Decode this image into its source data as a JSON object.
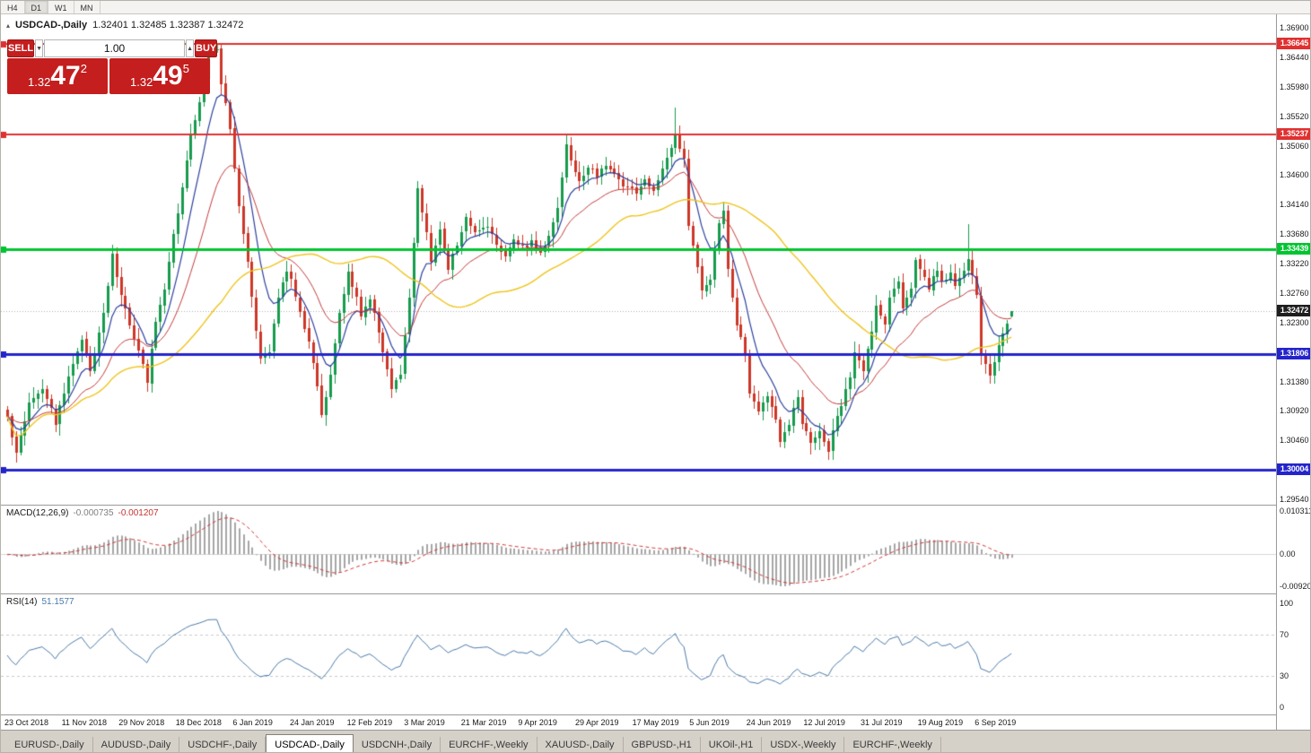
{
  "window": {
    "toolbar_timeframes": [
      "H4",
      "D1",
      "W1",
      "MN"
    ],
    "toolbar_active_index": 1
  },
  "chart_header": {
    "symbol": "USDCAD-,Daily",
    "ohlc": "1.32401 1.32485 1.32387 1.32472"
  },
  "icons": {
    "collapse": "▴",
    "volume_down": "▼",
    "volume_up": "▲"
  },
  "trade_panel": {
    "sell_label": "SELL",
    "buy_label": "BUY",
    "volume": "1.00",
    "sell_price": {
      "prefix": "1.32",
      "big": "47",
      "sup": "2"
    },
    "buy_price": {
      "prefix": "1.32",
      "big": "49",
      "sup": "5"
    }
  },
  "price_axis": {
    "labels": [
      "1.36900",
      "1.36440",
      "1.35980",
      "1.35520",
      "1.35060",
      "1.34600",
      "1.34140",
      "1.33680",
      "1.33220",
      "1.32760",
      "1.32300",
      "1.31840",
      "1.31380",
      "1.30920",
      "1.30460",
      "1.30000",
      "1.29540"
    ]
  },
  "levels": [
    {
      "price": 1.36645,
      "label": "1.36645",
      "color": "#e03030",
      "thickness": 2
    },
    {
      "price": 1.35237,
      "label": "1.35237",
      "color": "#e03030",
      "thickness": 2
    },
    {
      "price": 1.33439,
      "label": "1.33439",
      "color": "#00c430",
      "thickness": 3
    },
    {
      "price": 1.31806,
      "label": "1.31806",
      "color": "#2424cc",
      "thickness": 3
    },
    {
      "price": 1.30004,
      "label": "1.30004",
      "color": "#2424cc",
      "thickness": 3
    }
  ],
  "current_price": {
    "value": 1.32472,
    "label": "1.32472",
    "badge_color": "#1e1e1e"
  },
  "macd_panel": {
    "label": "MACD(12,26,9)",
    "value_main": "-0.000735",
    "value_signal": "-0.001207",
    "axis_top": "0.010311",
    "axis_zero": "0.00",
    "axis_bottom": "-0.009203"
  },
  "rsi_panel": {
    "label": "RSI(14)",
    "value": "51.1577",
    "axis": [
      "100",
      "70",
      "30",
      "0"
    ],
    "guide_levels": [
      70,
      30
    ],
    "period": 14
  },
  "date_axis": [
    "23 Oct 2018",
    "11 Nov 2018",
    "29 Nov 2018",
    "18 Dec 2018",
    "6 Jan 2019",
    "24 Jan 2019",
    "12 Feb 2019",
    "3 Mar 2019",
    "21 Mar 2019",
    "9 Apr 2019",
    "29 Apr 2019",
    "17 May 2019",
    "5 Jun 2019",
    "24 Jun 2019",
    "12 Jul 2019",
    "31 Jul 2019",
    "19 Aug 2019",
    "6 Sep 2019"
  ],
  "tabs": {
    "items": [
      "EURUSD-,Daily",
      "AUDUSD-,Daily",
      "USDCHF-,Daily",
      "USDCAD-,Daily",
      "USDCNH-,Daily",
      "EURCHF-,Weekly",
      "XAUUSD-,Daily",
      "GBPUSD-,H1",
      "UKOil-,H1",
      "USDX-,Weekly",
      "EURCHF-,Weekly"
    ],
    "active_index": 3
  },
  "chart_data": {
    "type": "candlestick-ohlc",
    "symbol": "USDCAD",
    "timeframe": "Daily",
    "bars": 231,
    "price_range": [
      1.2954,
      1.369
    ],
    "last_ohlc": {
      "open": 1.32401,
      "high": 1.32485,
      "low": 1.32387,
      "close": 1.32472
    },
    "waypoints": [
      [
        0,
        1.3081
      ],
      [
        2,
        1.3025
      ],
      [
        5,
        1.3102
      ],
      [
        8,
        1.313
      ],
      [
        11,
        1.3074
      ],
      [
        14,
        1.3144
      ],
      [
        17,
        1.32
      ],
      [
        19,
        1.3151
      ],
      [
        22,
        1.3242
      ],
      [
        24,
        1.3333
      ],
      [
        26,
        1.327
      ],
      [
        30,
        1.3186
      ],
      [
        32,
        1.3137
      ],
      [
        34,
        1.3235
      ],
      [
        36,
        1.3284
      ],
      [
        38,
        1.3368
      ],
      [
        40,
        1.3438
      ],
      [
        42,
        1.3522
      ],
      [
        44,
        1.3578
      ],
      [
        46,
        1.3648
      ],
      [
        48,
        1.3655
      ],
      [
        49,
        1.3606
      ],
      [
        51,
        1.3536
      ],
      [
        52,
        1.3473
      ],
      [
        53,
        1.341
      ],
      [
        55,
        1.3326
      ],
      [
        56,
        1.327
      ],
      [
        58,
        1.3172
      ],
      [
        60,
        1.3186
      ],
      [
        62,
        1.327
      ],
      [
        64,
        1.3312
      ],
      [
        65,
        1.3298
      ],
      [
        67,
        1.3249
      ],
      [
        69,
        1.32
      ],
      [
        71,
        1.313
      ],
      [
        72,
        1.3088
      ],
      [
        74,
        1.3144
      ],
      [
        76,
        1.3245
      ],
      [
        78,
        1.331
      ],
      [
        80,
        1.327
      ],
      [
        81,
        1.3242
      ],
      [
        83,
        1.327
      ],
      [
        85,
        1.3214
      ],
      [
        87,
        1.3158
      ],
      [
        88,
        1.313
      ],
      [
        90,
        1.3144
      ],
      [
        92,
        1.327
      ],
      [
        94,
        1.3438
      ],
      [
        96,
        1.3368
      ],
      [
        97,
        1.3326
      ],
      [
        99,
        1.3375
      ],
      [
        101,
        1.3312
      ],
      [
        103,
        1.3354
      ],
      [
        105,
        1.3396
      ],
      [
        107,
        1.3368
      ],
      [
        110,
        1.3382
      ],
      [
        112,
        1.3354
      ],
      [
        114,
        1.3333
      ],
      [
        116,
        1.3361
      ],
      [
        118,
        1.3347
      ],
      [
        120,
        1.3354
      ],
      [
        122,
        1.334
      ],
      [
        124,
        1.3361
      ],
      [
        126,
        1.341
      ],
      [
        128,
        1.3508
      ],
      [
        129,
        1.348
      ],
      [
        131,
        1.3452
      ],
      [
        133,
        1.3473
      ],
      [
        135,
        1.3459
      ],
      [
        137,
        1.3473
      ],
      [
        139,
        1.3459
      ],
      [
        141,
        1.3445
      ],
      [
        144,
        1.3431
      ],
      [
        146,
        1.3452
      ],
      [
        148,
        1.3438
      ],
      [
        150,
        1.3473
      ],
      [
        152,
        1.3501
      ],
      [
        153,
        1.3522
      ],
      [
        155,
        1.3487
      ],
      [
        156,
        1.3382
      ],
      [
        158,
        1.3319
      ],
      [
        159,
        1.3284
      ],
      [
        161,
        1.3298
      ],
      [
        163,
        1.3389
      ],
      [
        164,
        1.3403
      ],
      [
        165,
        1.3312
      ],
      [
        167,
        1.3228
      ],
      [
        169,
        1.3179
      ],
      [
        170,
        1.3116
      ],
      [
        172,
        1.3095
      ],
      [
        174,
        1.3116
      ],
      [
        176,
        1.3074
      ],
      [
        177,
        1.3046
      ],
      [
        179,
        1.3074
      ],
      [
        181,
        1.3116
      ],
      [
        182,
        1.3074
      ],
      [
        184,
        1.3046
      ],
      [
        186,
        1.306
      ],
      [
        188,
        1.3025
      ],
      [
        189,
        1.306
      ],
      [
        191,
        1.3102
      ],
      [
        193,
        1.3144
      ],
      [
        194,
        1.3186
      ],
      [
        196,
        1.3158
      ],
      [
        198,
        1.3214
      ],
      [
        199,
        1.3256
      ],
      [
        201,
        1.3228
      ],
      [
        202,
        1.327
      ],
      [
        204,
        1.3298
      ],
      [
        205,
        1.3256
      ],
      [
        207,
        1.3284
      ],
      [
        208,
        1.3326
      ],
      [
        210,
        1.3298
      ],
      [
        211,
        1.3284
      ],
      [
        213,
        1.3312
      ],
      [
        214,
        1.3291
      ],
      [
        216,
        1.3305
      ],
      [
        217,
        1.3284
      ],
      [
        219,
        1.3312
      ],
      [
        220,
        1.3333
      ],
      [
        222,
        1.327
      ],
      [
        223,
        1.3179
      ],
      [
        225,
        1.3144
      ],
      [
        226,
        1.3172
      ],
      [
        228,
        1.3214
      ],
      [
        230,
        1.3247
      ]
    ],
    "force_extremes": [
      {
        "index": 2,
        "low": 1.3011
      },
      {
        "index": 48,
        "high": 1.36645
      },
      {
        "index": 153,
        "high": 1.3565
      },
      {
        "index": 188,
        "low": 1.3016
      },
      {
        "index": 220,
        "high": 1.3383
      }
    ],
    "moving_averages": [
      {
        "type": "EMA",
        "period": 8,
        "color": "#2b3f9e",
        "width": 1.2
      },
      {
        "type": "EMA",
        "period": 21,
        "color": "#c43a3a",
        "width": 1
      },
      {
        "type": "SMA",
        "period": 50,
        "color": "#eec41c",
        "width": 1.4
      }
    ],
    "colors": {
      "bull": "#169b4d",
      "bear": "#cd3728",
      "macd_hist": "#a6a6a6",
      "macd_signal": "#d23434",
      "rsi_line": "#4a7aa8",
      "current_line": "#b0b0b0"
    }
  }
}
